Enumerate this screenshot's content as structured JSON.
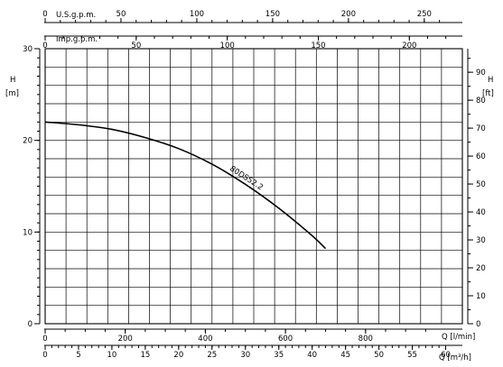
{
  "chart_data": {
    "type": "line",
    "title": "",
    "left_axis": {
      "label": "H",
      "unit": "[m]",
      "ylim": [
        0,
        30
      ],
      "ticks": [
        "0",
        "10",
        "20",
        "30"
      ]
    },
    "right_axis": {
      "label": "H",
      "unit": "[ft]",
      "ylim": [
        0,
        98.43
      ],
      "ticks": [
        "0",
        "10",
        "20",
        "30",
        "40",
        "50",
        "60",
        "70",
        "80",
        "90"
      ]
    },
    "top_axis_usgpm": {
      "label": "U.S.g.p.m.",
      "xlim": [
        0,
        275.1
      ],
      "ticks": [
        "0",
        "50",
        "100",
        "150",
        "200",
        "250"
      ]
    },
    "top_axis_impgpm": {
      "label": "Imp.g.p.m.",
      "xlim": [
        0,
        229.1
      ],
      "ticks": [
        "0",
        "50",
        "100",
        "150",
        "200"
      ]
    },
    "bottom_axis_lmin": {
      "label": "Q [l/min]",
      "xlim": [
        0,
        1041.7
      ],
      "ticks": [
        "0",
        "200",
        "400",
        "600",
        "800"
      ]
    },
    "bottom_axis_m3h": {
      "label": "Q [m³/h]",
      "xlim": [
        0,
        62.5
      ],
      "ticks": [
        "0",
        "5",
        "10",
        "15",
        "20",
        "25",
        "30",
        "35",
        "40",
        "45",
        "50",
        "55",
        "60"
      ]
    },
    "grid": true,
    "series": [
      {
        "name": "80DS52.2",
        "x": [
          0,
          5,
          10,
          15,
          20,
          25,
          30,
          35,
          40,
          42
        ],
        "y": [
          22.0,
          21.7,
          21.2,
          20.3,
          19.1,
          17.4,
          15.2,
          12.6,
          9.6,
          8.2
        ]
      }
    ]
  }
}
